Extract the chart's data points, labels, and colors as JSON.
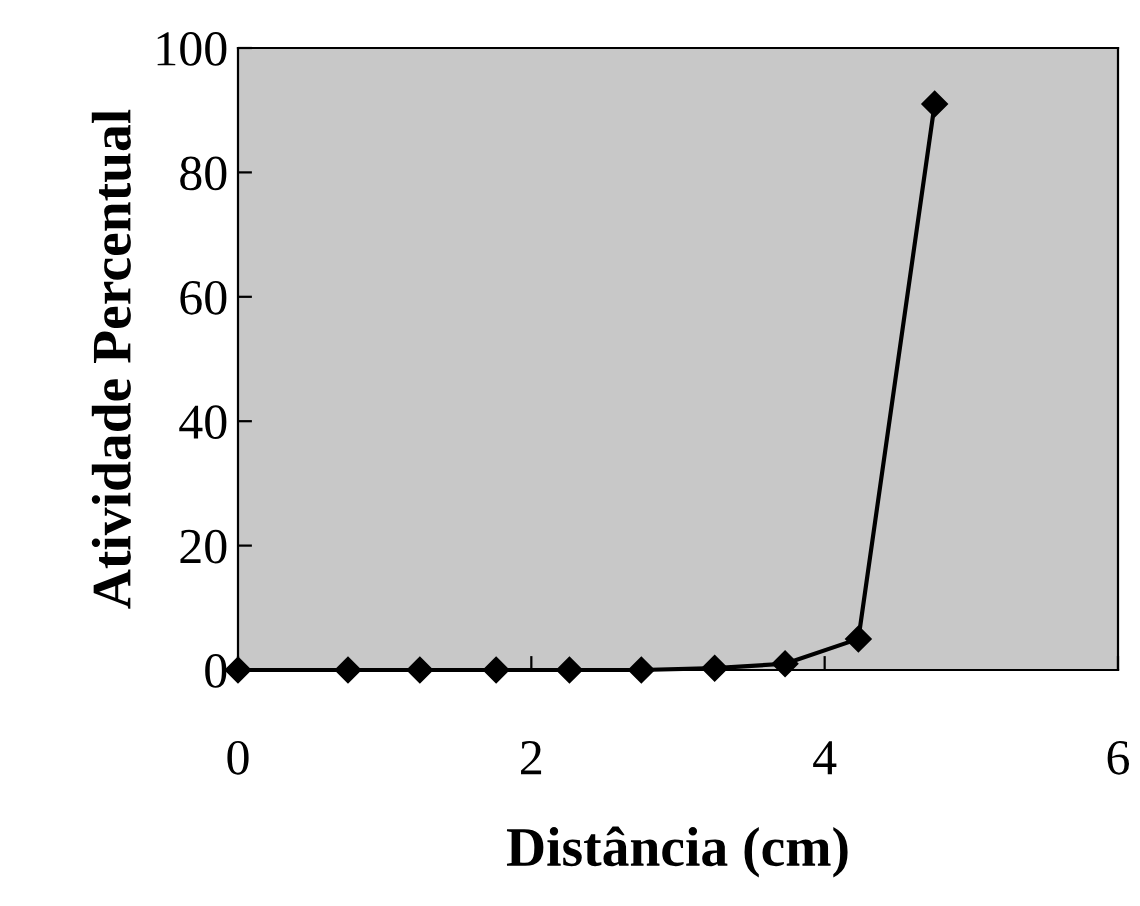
{
  "chart_data": {
    "type": "line",
    "xlabel": "Distância (cm)",
    "ylabel": "Atividade Percentual",
    "x": [
      0,
      0.75,
      1.24,
      1.76,
      2.26,
      2.75,
      3.25,
      3.73,
      4.23,
      4.75
    ],
    "series": [
      {
        "color": "#000000",
        "values": [
          0,
          0,
          0,
          0,
          0,
          0,
          0.3,
          1,
          5,
          91
        ]
      }
    ],
    "xlim": [
      0,
      6
    ],
    "xticks": [
      0,
      2,
      4,
      6
    ],
    "ylim": [
      0,
      100
    ],
    "yticks": [
      0,
      20,
      40,
      60,
      80,
      100
    ],
    "marker": "diamond",
    "line_style": "solid",
    "grid": false,
    "legend": false
  }
}
